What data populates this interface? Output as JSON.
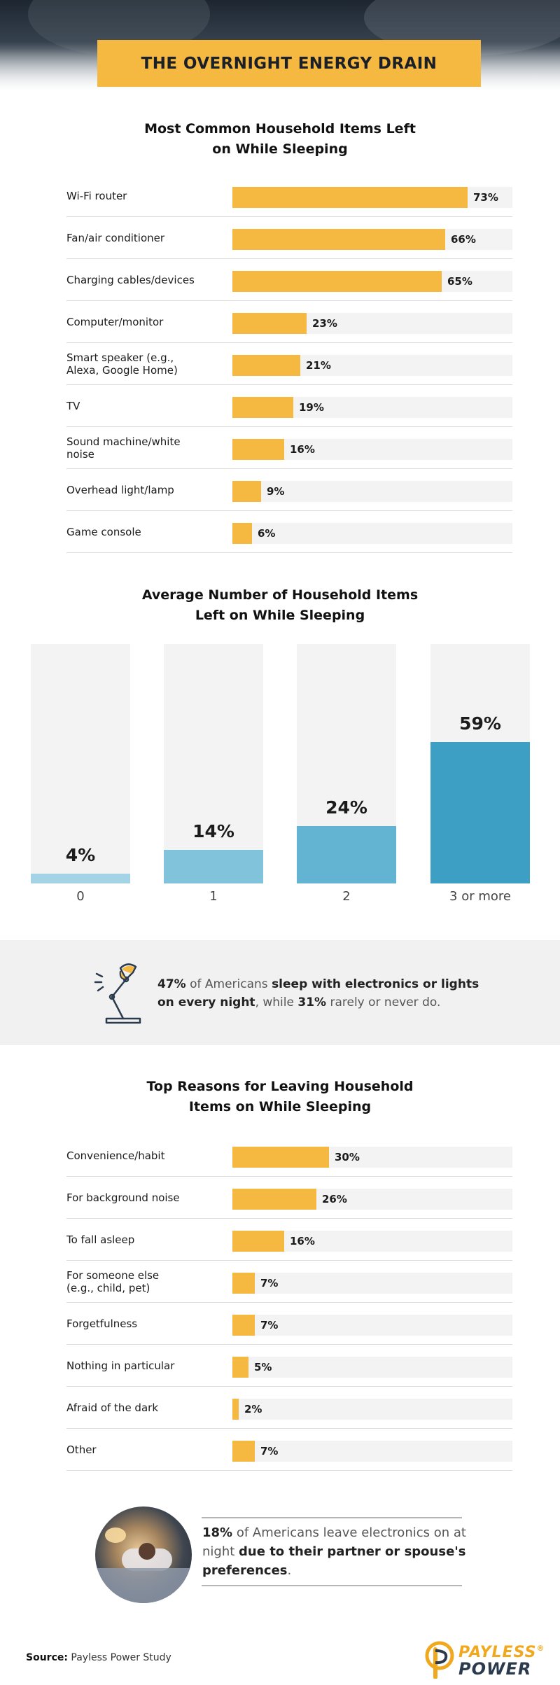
{
  "header": {
    "title": "THE OVERNIGHT ENERGY DRAIN"
  },
  "colors": {
    "accent_yellow": "#f5b840",
    "track_gray": "#f3f3f3",
    "blue_dark": "#3e9fc4",
    "blue_mid": "#63b3d2",
    "blue_light": "#82c3dc",
    "blue_pale": "#a4d3e6"
  },
  "chart_data": [
    {
      "type": "bar",
      "orientation": "horizontal",
      "title": "Most Common Household Items Left on While Sleeping",
      "categories": [
        "Wi-Fi router",
        "Fan/air conditioner",
        "Charging cables/devices",
        "Computer/monitor",
        "Smart speaker (e.g., Alexa, Google Home)",
        "TV",
        "Sound machine/white noise",
        "Overhead light/lamp",
        "Game console"
      ],
      "values": [
        73,
        66,
        65,
        23,
        21,
        19,
        16,
        9,
        6
      ],
      "value_labels": [
        "73%",
        "66%",
        "65%",
        "23%",
        "21%",
        "19%",
        "16%",
        "9%",
        "6%"
      ],
      "xlim": [
        0,
        100
      ]
    },
    {
      "type": "bar",
      "orientation": "vertical",
      "title": "Average Number of Household Items Left on While Sleeping",
      "categories": [
        "0",
        "1",
        "2",
        "3 or more"
      ],
      "values": [
        4,
        14,
        24,
        59
      ],
      "value_labels": [
        "4%",
        "14%",
        "24%",
        "59%"
      ],
      "ylim": [
        0,
        100
      ],
      "colors": [
        "#a4d3e6",
        "#82c3dc",
        "#63b3d2",
        "#3e9fc4"
      ]
    },
    {
      "type": "bar",
      "orientation": "horizontal",
      "title": "Top Reasons for Leaving Household Items on While Sleeping",
      "categories": [
        "Convenience/habit",
        "For background noise",
        "To fall asleep",
        "For someone else (e.g., child, pet)",
        "Forgetfulness",
        "Nothing in particular",
        "Afraid of the dark",
        "Other"
      ],
      "values": [
        30,
        26,
        16,
        7,
        7,
        5,
        2,
        7
      ],
      "value_labels": [
        "30%",
        "26%",
        "16%",
        "7%",
        "7%",
        "5%",
        "2%",
        "7%"
      ],
      "xlim": [
        0,
        100
      ]
    }
  ],
  "chart1": {
    "title_line1": "Most Common Household Items Left",
    "title_line2": "on While Sleeping",
    "rows": [
      {
        "label_l1": "Wi-Fi router",
        "label_l2": "",
        "value": 73,
        "value_label": "73%"
      },
      {
        "label_l1": "Fan/air conditioner",
        "label_l2": "",
        "value": 66,
        "value_label": "66%"
      },
      {
        "label_l1": "Charging cables/devices",
        "label_l2": "",
        "value": 65,
        "value_label": "65%"
      },
      {
        "label_l1": "Computer/monitor",
        "label_l2": "",
        "value": 23,
        "value_label": "23%"
      },
      {
        "label_l1": "Smart speaker (e.g.,",
        "label_l2": "Alexa, Google Home)",
        "value": 21,
        "value_label": "21%"
      },
      {
        "label_l1": "TV",
        "label_l2": "",
        "value": 19,
        "value_label": "19%"
      },
      {
        "label_l1": "Sound machine/white",
        "label_l2": "noise",
        "value": 16,
        "value_label": "16%"
      },
      {
        "label_l1": "Overhead light/lamp",
        "label_l2": "",
        "value": 9,
        "value_label": "9%"
      },
      {
        "label_l1": "Game console",
        "label_l2": "",
        "value": 6,
        "value_label": "6%"
      }
    ]
  },
  "chart2": {
    "title_line1": "Average Number of Household Items",
    "title_line2": "Left on While Sleeping",
    "cols": [
      {
        "category": "0",
        "value": 4,
        "value_label": "4%",
        "color": "#a4d3e6"
      },
      {
        "category": "1",
        "value": 14,
        "value_label": "14%",
        "color": "#82c3dc"
      },
      {
        "category": "2",
        "value": 24,
        "value_label": "24%",
        "color": "#63b3d2"
      },
      {
        "category": "3 or more",
        "value": 59,
        "value_label": "59%",
        "color": "#3e9fc4"
      }
    ]
  },
  "callout1": {
    "icon": "desk-lamp-icon",
    "stat1": "47%",
    "text1": " of Americans ",
    "bold1": "sleep with electronics or lights on every night",
    "text2": ", while ",
    "stat2": "31%",
    "text3": " rarely or never do."
  },
  "chart3": {
    "title_line1": "Top Reasons for Leaving Household",
    "title_line2": "Items on While Sleeping",
    "rows": [
      {
        "label_l1": "Convenience/habit",
        "label_l2": "",
        "value": 30,
        "value_label": "30%"
      },
      {
        "label_l1": "For background noise",
        "label_l2": "",
        "value": 26,
        "value_label": "26%"
      },
      {
        "label_l1": "To fall asleep",
        "label_l2": "",
        "value": 16,
        "value_label": "16%"
      },
      {
        "label_l1": "For someone else",
        "label_l2": "(e.g., child, pet)",
        "value": 7,
        "value_label": "7%"
      },
      {
        "label_l1": "Forgetfulness",
        "label_l2": "",
        "value": 7,
        "value_label": "7%"
      },
      {
        "label_l1": "Nothing in particular",
        "label_l2": "",
        "value": 5,
        "value_label": "5%"
      },
      {
        "label_l1": "Afraid of the dark",
        "label_l2": "",
        "value": 2,
        "value_label": "2%"
      },
      {
        "label_l1": "Other",
        "label_l2": "",
        "value": 7,
        "value_label": "7%"
      }
    ]
  },
  "callout2": {
    "stat": "18%",
    "text1": " of Americans leave electronics on at night ",
    "bold": "due to their partner or spouse's preferences",
    "text2": "."
  },
  "footer": {
    "source_label": "Source:",
    "source_text": " Payless Power Study",
    "logo_word1": "PAYLESS",
    "logo_word2": "POWER",
    "logo_mark": "®"
  }
}
